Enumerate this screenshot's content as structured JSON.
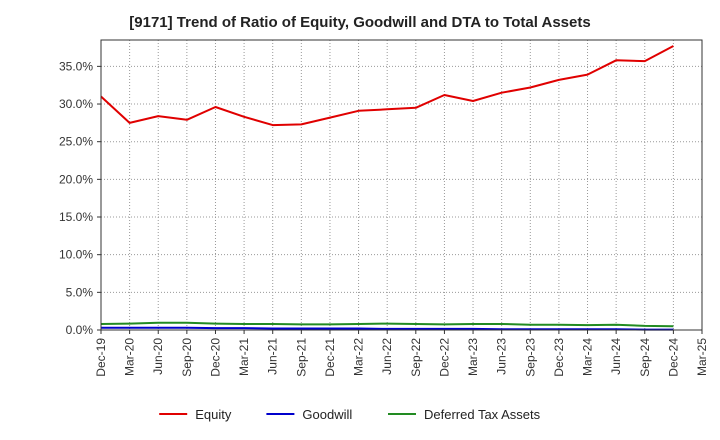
{
  "chart_data": {
    "type": "line",
    "title": "[9171]  Trend of Ratio of Equity, Goodwill and DTA to Total Assets",
    "xlabel": "",
    "ylabel": "",
    "categories": [
      "Dec-19",
      "Mar-20",
      "Jun-20",
      "Sep-20",
      "Dec-20",
      "Mar-21",
      "Jun-21",
      "Sep-21",
      "Dec-21",
      "Mar-22",
      "Jun-22",
      "Sep-22",
      "Dec-22",
      "Mar-23",
      "Jun-23",
      "Sep-23",
      "Dec-23",
      "Mar-24",
      "Jun-24",
      "Sep-24",
      "Dec-24",
      "Mar-25"
    ],
    "ylim": [
      0,
      38.5
    ],
    "yticks": [
      0,
      5,
      10,
      15,
      20,
      25,
      30,
      35
    ],
    "ytick_labels": [
      "0.0%",
      "5.0%",
      "10.0%",
      "15.0%",
      "20.0%",
      "25.0%",
      "30.0%",
      "35.0%"
    ],
    "grid": true,
    "legend_position": "bottom",
    "series": [
      {
        "name": "Equity",
        "color": "#e00000",
        "values": [
          31.0,
          27.5,
          28.4,
          27.9,
          29.6,
          28.3,
          27.2,
          27.3,
          28.2,
          29.1,
          29.3,
          29.5,
          31.2,
          30.4,
          31.5,
          32.2,
          33.2,
          33.9,
          35.8,
          35.7,
          37.7,
          null
        ]
      },
      {
        "name": "Goodwill",
        "color": "#0000cc",
        "values": [
          0.3,
          0.3,
          0.3,
          0.3,
          0.25,
          0.25,
          0.2,
          0.2,
          0.2,
          0.2,
          0.15,
          0.15,
          0.15,
          0.15,
          0.1,
          0.1,
          0.1,
          0.1,
          0.1,
          0.05,
          0.05,
          null
        ]
      },
      {
        "name": "Deferred Tax Assets",
        "color": "#228b22",
        "values": [
          0.8,
          0.85,
          0.95,
          0.95,
          0.85,
          0.8,
          0.8,
          0.75,
          0.75,
          0.8,
          0.85,
          0.8,
          0.75,
          0.8,
          0.8,
          0.7,
          0.7,
          0.65,
          0.7,
          0.55,
          0.5,
          null
        ]
      }
    ]
  }
}
